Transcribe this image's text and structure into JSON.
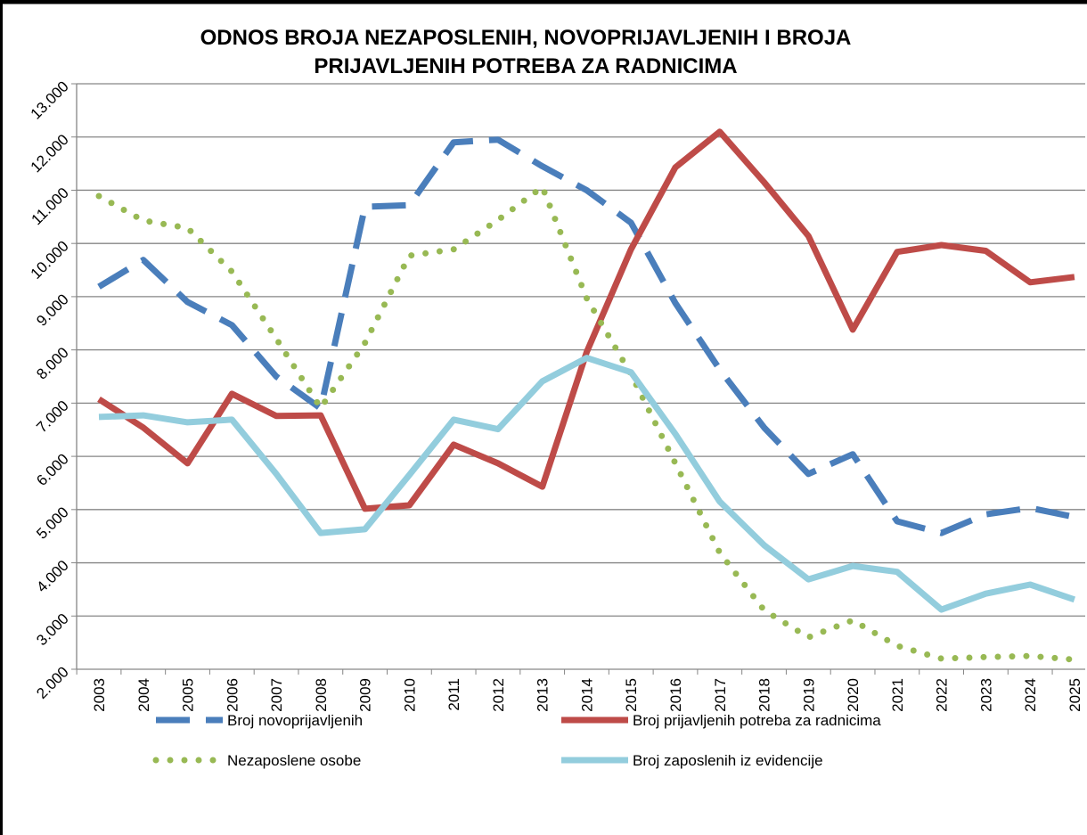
{
  "chart_data": {
    "type": "line",
    "title": [
      "ODNOS BROJA NEZAPOSLENIH, NOVOPRIJAVLJENIH I BROJA",
      "PRIJAVLJENIH POTREBA ZA RADNICIMA"
    ],
    "categories": [
      "2003",
      "2004",
      "2005",
      "2006",
      "2007",
      "2008",
      "2009",
      "2010",
      "2011",
      "2012",
      "2013",
      "2014",
      "2015",
      "2016",
      "2017",
      "2018",
      "2019",
      "2020",
      "2021",
      "2022",
      "2023",
      "2024",
      "2025"
    ],
    "ylim": [
      2000,
      13000
    ],
    "yticks": [
      {
        "value": 2000,
        "label": "2.000"
      },
      {
        "value": 3000,
        "label": "3.000"
      },
      {
        "value": 4000,
        "label": "4.000"
      },
      {
        "value": 5000,
        "label": "5.000"
      },
      {
        "value": 6000,
        "label": "6.000"
      },
      {
        "value": 7000,
        "label": "7.000"
      },
      {
        "value": 8000,
        "label": "8.000"
      },
      {
        "value": 9000,
        "label": "9.000"
      },
      {
        "value": 10000,
        "label": "10.000"
      },
      {
        "value": 11000,
        "label": "11.000"
      },
      {
        "value": 12000,
        "label": "12.000"
      },
      {
        "value": 13000,
        "label": "13.000"
      }
    ],
    "grid": true,
    "series": [
      {
        "name": "Broj novoprijavljenih",
        "color": "#4a7ebb",
        "style": "dash",
        "values": [
          9186,
          9690,
          8900,
          8466,
          7500,
          6900,
          10690,
          10720,
          11900,
          11950,
          11450,
          11000,
          10390,
          8880,
          7630,
          6540,
          5670,
          6040,
          4780,
          4560,
          4910,
          5030,
          4860
        ]
      },
      {
        "name": "Broj prijavljenih potreba za radnicima",
        "color": "#be4b48",
        "style": "solid",
        "values": [
          7075,
          6540,
          5870,
          7175,
          6760,
          6770,
          5015,
          5080,
          6220,
          5870,
          5430,
          7960,
          9890,
          11430,
          12100,
          11150,
          10140,
          8380,
          9840,
          9970,
          9860,
          9270,
          9370
        ]
      },
      {
        "name": "Nezaposlene osobe",
        "color": "#98b954",
        "style": "dot",
        "values": [
          10890,
          10430,
          10290,
          9470,
          8210,
          6910,
          8130,
          9770,
          9890,
          10440,
          11060,
          8970,
          7540,
          5870,
          4190,
          3110,
          2600,
          2920,
          2440,
          2200,
          2230,
          2250,
          2180
        ]
      },
      {
        "name": "Broj zaposlenih iz evidencije",
        "color": "#93cddd",
        "style": "solid",
        "values": [
          6740,
          6770,
          6640,
          6690,
          5670,
          4560,
          4630,
          5650,
          6690,
          6510,
          7410,
          7850,
          7580,
          6420,
          5150,
          4330,
          3690,
          3940,
          3830,
          3120,
          3420,
          3590,
          3310
        ]
      }
    ]
  }
}
